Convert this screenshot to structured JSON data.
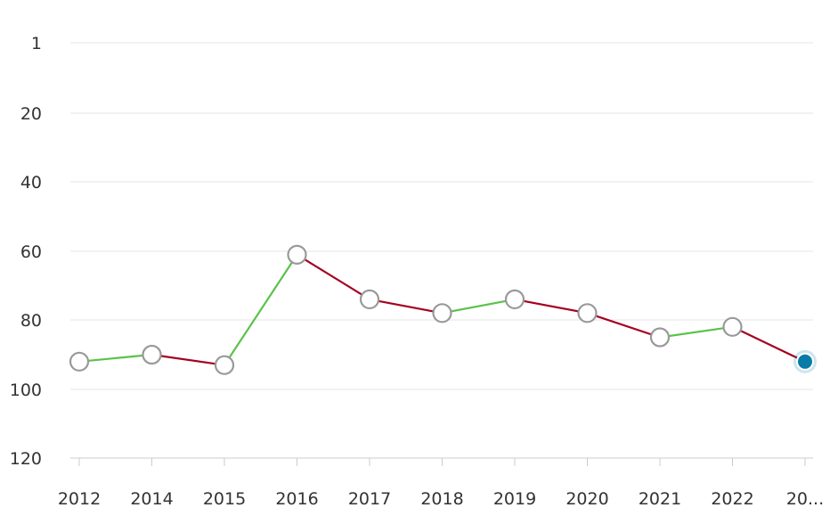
{
  "chart_data": {
    "type": "line",
    "title": "",
    "xlabel": "",
    "ylabel": "",
    "categories": [
      "2012",
      "2014",
      "2015",
      "2016",
      "2017",
      "2018",
      "2019",
      "2020",
      "2021",
      "2022",
      "20..."
    ],
    "series": [
      {
        "values": [
          92,
          90,
          93,
          61,
          74,
          78,
          74,
          78,
          85,
          82,
          92
        ]
      }
    ],
    "y_axis": {
      "reversed": true,
      "ticks": [
        1,
        20,
        40,
        60,
        80,
        100,
        120
      ],
      "tick_labels": [
        "1",
        "20",
        "40",
        "60",
        "80",
        "100",
        "120"
      ],
      "range": [
        1,
        120
      ]
    },
    "grid": true,
    "colors": {
      "improving": "#5bc24b",
      "declining": "#a50021",
      "gridline": "#e6e6e6",
      "axis": "#cccccc",
      "marker_fill": "#ffffff",
      "marker_stroke": "#999999",
      "highlight_marker": "#0a7ba6"
    },
    "highlighted_point_index": 10
  }
}
